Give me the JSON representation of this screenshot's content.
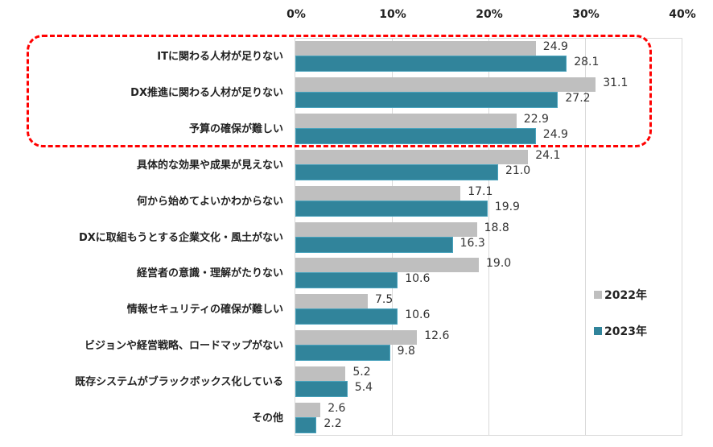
{
  "chart_data": {
    "type": "bar",
    "orientation": "horizontal",
    "title": "",
    "xlabel": "",
    "ylabel": "",
    "xlim": [
      0,
      40
    ],
    "x_ticks": [
      "0%",
      "10%",
      "20%",
      "30%",
      "40%"
    ],
    "grid": true,
    "legend_position": "right",
    "categories": [
      "ITに関わる人材が足りない",
      "DX推進に関わる人材が足りない",
      "予算の確保が難しい",
      "具体的な効果や成果が見えない",
      "何から始めてよいかわからない",
      "DXに取組もうとする企業文化・風土がない",
      "経営者の意識・理解がたりない",
      "情報セキュリティの確保が難しい",
      "ビジョンや経営戦略、ロードマップがない",
      "既存システムがブラックボックス化している",
      "その他"
    ],
    "series": [
      {
        "name": "2022年",
        "color": "#bfbfbf",
        "values": [
          24.9,
          31.1,
          22.9,
          24.1,
          17.1,
          18.8,
          19.0,
          7.5,
          12.6,
          5.2,
          2.6
        ]
      },
      {
        "name": "2023年",
        "color": "#31849b",
        "values": [
          28.1,
          27.2,
          24.9,
          21.0,
          19.9,
          16.3,
          10.6,
          10.6,
          9.8,
          5.4,
          2.2
        ]
      }
    ],
    "value_labels": {
      "2022年": [
        "24.9",
        "31.1",
        "22.9",
        "24.1",
        "17.1",
        "18.8",
        "19.0",
        "7.5",
        "12.6",
        "5.2",
        "2.6"
      ],
      "2023年": [
        "28.1",
        "27.2",
        "24.9",
        "21.0",
        "19.9",
        "16.3",
        "10.6",
        "10.6",
        "9.8",
        "5.4",
        "2.2"
      ]
    },
    "annotations": [
      {
        "type": "dashed-rounded-box",
        "color": "#ff0000",
        "covers_categories": [
          0,
          1,
          2
        ]
      }
    ]
  },
  "legend": {
    "items": [
      {
        "label": "2022年",
        "color": "#bfbfbf"
      },
      {
        "label": "2023年",
        "color": "#31849b"
      }
    ]
  }
}
